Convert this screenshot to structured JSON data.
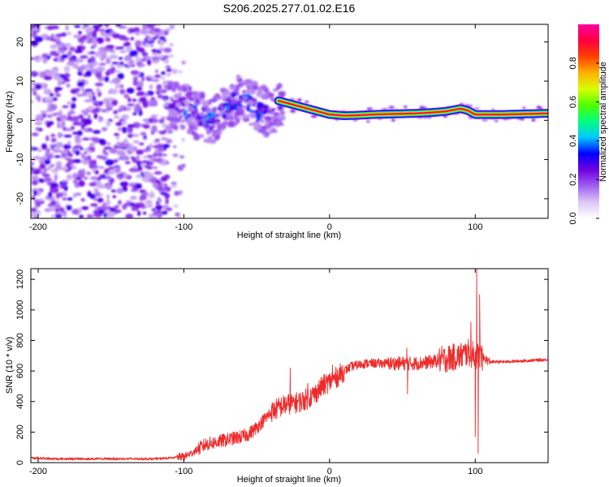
{
  "chart_data": [
    {
      "type": "heatmap",
      "title": "S206.2025.277.01.02.E16",
      "xlabel": "Height of straight line (km)",
      "ylabel": "Frequency (Hz)",
      "xlim": [
        -205,
        150
      ],
      "ylim": [
        -25,
        24.5
      ],
      "x_ticks": [
        -200,
        -100,
        0,
        100
      ],
      "y_ticks": [
        -20,
        -10,
        0,
        10,
        20
      ],
      "colorbar": {
        "label": "Normalized spectral amplitude",
        "range": [
          0,
          1
        ],
        "ticks": [
          0.0,
          0.2,
          0.4,
          0.6,
          0.8
        ],
        "tick_labels": [
          "0.0",
          "0.2",
          "0.4",
          "0.6",
          "0.8"
        ],
        "colors": [
          "#ffffff",
          "#dcc8f5",
          "#a060f0",
          "#7000e0",
          "#0000ff",
          "#00c8ff",
          "#00ff80",
          "#50ff00",
          "#d8ff00",
          "#ffb000",
          "#ff4000",
          "#ff0040",
          "#ff00a0"
        ]
      },
      "regions": [
        {
          "name": "noise",
          "x_range": [
            -205,
            -110
          ],
          "freq_range": [
            -25,
            24.5
          ],
          "amplitude": [
            0.05,
            0.25
          ]
        },
        {
          "name": "transition",
          "x_range": [
            -110,
            -32
          ],
          "freq_range": [
            -14,
            10
          ],
          "amplitude": [
            0.1,
            0.35
          ]
        },
        {
          "name": "signal_track",
          "x_range": [
            -35,
            150
          ],
          "amplitude": [
            0.5,
            0.95
          ]
        }
      ],
      "signal_track": {
        "x": [
          -35,
          -30,
          -25,
          -20,
          -15,
          -10,
          -5,
          0,
          10,
          20,
          30,
          40,
          50,
          60,
          70,
          80,
          90,
          95,
          100,
          110,
          120,
          130,
          140,
          150
        ],
        "freq": [
          5,
          4.5,
          4,
          3.5,
          3,
          2.5,
          2,
          1.5,
          1.2,
          1.3,
          1.5,
          1.6,
          1.7,
          1.8,
          2.0,
          2.3,
          3.0,
          2.5,
          1.5,
          1.5,
          1.5,
          1.6,
          1.7,
          1.8
        ]
      },
      "transition_track": {
        "x": [
          -108,
          -100,
          -90,
          -80,
          -70,
          -60,
          -50,
          -40,
          -35
        ],
        "freq": [
          4,
          3.5,
          1,
          0,
          4,
          6,
          3,
          2,
          4
        ]
      }
    },
    {
      "type": "line",
      "xlabel": "Height of straight line (km)",
      "ylabel": "SNR (10 * v/v)",
      "xlim": [
        -205,
        150
      ],
      "ylim": [
        0,
        1270
      ],
      "x_ticks": [
        -200,
        -100,
        0,
        100
      ],
      "y_ticks": [
        0,
        200,
        400,
        600,
        800,
        1000,
        1200
      ],
      "color": "#ee2b2b",
      "series": [
        {
          "name": "SNR",
          "x": [
            -205,
            -200,
            -190,
            -180,
            -170,
            -160,
            -150,
            -140,
            -130,
            -120,
            -110,
            -100,
            -95,
            -90,
            -85,
            -80,
            -75,
            -70,
            -65,
            -60,
            -55,
            -50,
            -45,
            -40,
            -35,
            -30,
            -25,
            -20,
            -15,
            -10,
            -5,
            0,
            5,
            10,
            15,
            20,
            25,
            30,
            40,
            50,
            60,
            70,
            80,
            90,
            95,
            100,
            105,
            110,
            120,
            130,
            140,
            150
          ],
          "y": [
            30,
            30,
            25,
            25,
            25,
            25,
            25,
            25,
            25,
            25,
            30,
            40,
            60,
            90,
            120,
            130,
            140,
            150,
            160,
            170,
            190,
            230,
            280,
            330,
            360,
            380,
            390,
            400,
            420,
            450,
            500,
            530,
            560,
            600,
            630,
            640,
            650,
            650,
            650,
            650,
            650,
            660,
            680,
            700,
            720,
            700,
            690,
            660,
            660,
            665,
            670,
            675
          ]
        }
      ],
      "spikes": [
        {
          "x": -27,
          "y": 620
        },
        {
          "x": -25,
          "y": 430
        },
        {
          "x": -15,
          "y": 520
        },
        {
          "x": 2,
          "y": 640
        },
        {
          "x": 53,
          "y": 750
        },
        {
          "x": 53.5,
          "y": 450
        },
        {
          "x": 97,
          "y": 920
        },
        {
          "x": 100,
          "y": 170
        },
        {
          "x": 101,
          "y": 1270
        },
        {
          "x": 102,
          "y": 60
        },
        {
          "x": 103,
          "y": 1100
        }
      ]
    }
  ]
}
